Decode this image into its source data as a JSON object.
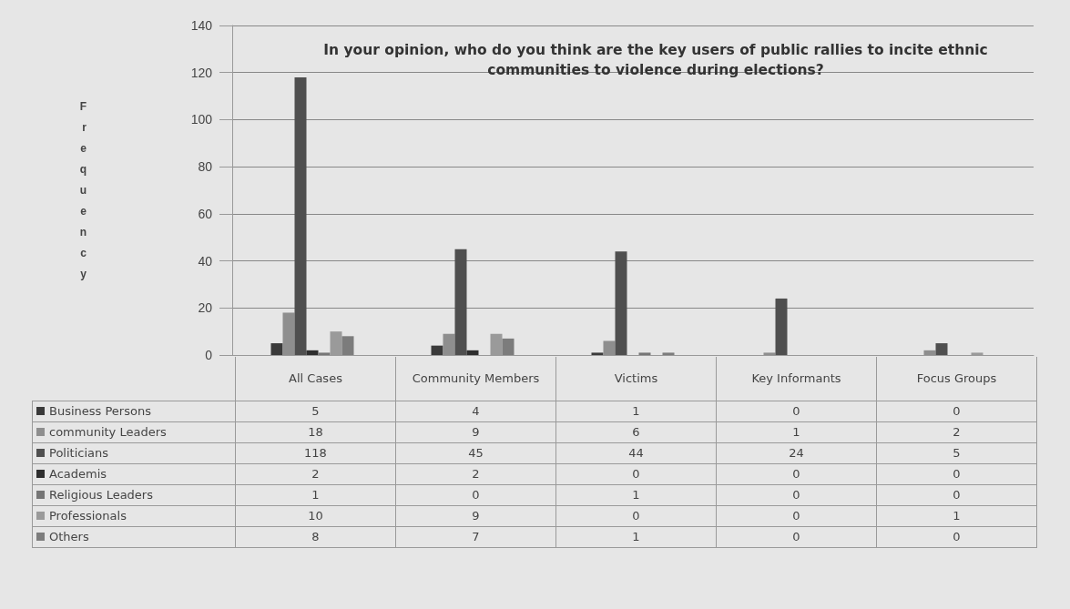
{
  "chart_data": {
    "type": "bar",
    "title": "In your opinion, who do you think are the key users of public rallies to incite ethnic communities to violence during elections?",
    "ylabel": "Frequency",
    "categories": [
      "All Cases",
      "Community Members",
      "Victims",
      "Key Informants",
      "Focus Groups"
    ],
    "series": [
      {
        "name": "Business Persons",
        "color": "#3a3a3a",
        "values": [
          5,
          4,
          1,
          0,
          0
        ]
      },
      {
        "name": "community Leaders",
        "color": "#8e8e8e",
        "values": [
          18,
          9,
          6,
          1,
          2
        ]
      },
      {
        "name": "Politicians",
        "color": "#4f4f4f",
        "values": [
          118,
          45,
          44,
          24,
          5
        ]
      },
      {
        "name": "Academis",
        "color": "#2e2e2e",
        "values": [
          2,
          2,
          0,
          0,
          0
        ]
      },
      {
        "name": "Religious Leaders",
        "color": "#767676",
        "values": [
          1,
          0,
          1,
          0,
          0
        ]
      },
      {
        "name": "Professionals",
        "color": "#9a9a9a",
        "values": [
          10,
          9,
          0,
          0,
          1
        ]
      },
      {
        "name": "Others",
        "color": "#7c7c7c",
        "values": [
          8,
          7,
          1,
          0,
          0
        ]
      }
    ],
    "ylim": [
      0,
      140
    ],
    "yticks": [
      0,
      20,
      40,
      60,
      80,
      100,
      120,
      140
    ],
    "grid": "y",
    "legend": "bottom",
    "data_labels": true
  }
}
